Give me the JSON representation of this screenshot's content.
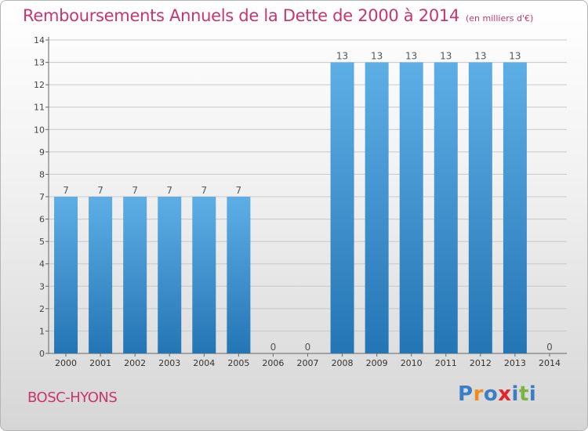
{
  "title": "Remboursements Annuels de la Dette de 2000 à 2014",
  "unit": "(en milliers d'€)",
  "commune": "BOSC-HYONS",
  "logo": {
    "text": "Proxiti",
    "colors": [
      "#3a7fc4",
      "#f08a1c",
      "#3a7fc4",
      "#e3242b",
      "#3a7fc4",
      "#7cb342",
      "#3a7fc4"
    ]
  },
  "colors": {
    "bar_top": "#5eaee6",
    "bar_bottom": "#2475b4",
    "title": "#c9356e"
  },
  "chart_data": {
    "type": "bar",
    "title": "Remboursements Annuels de la Dette de 2000 à 2014",
    "categories": [
      "2000",
      "2001",
      "2002",
      "2003",
      "2004",
      "2005",
      "2006",
      "2007",
      "2008",
      "2009",
      "2010",
      "2011",
      "2012",
      "2013",
      "2014"
    ],
    "values": [
      7,
      7,
      7,
      7,
      7,
      7,
      0,
      0,
      13,
      13,
      13,
      13,
      13,
      13,
      0
    ],
    "data_labels": [
      "7",
      "7",
      "7",
      "7",
      "7",
      "7",
      "0",
      "0",
      "13",
      "13",
      "13",
      "13",
      "13",
      "13",
      "0"
    ],
    "ylim": [
      0,
      14
    ],
    "yticks": [
      0,
      1,
      2,
      3,
      4,
      5,
      6,
      7,
      8,
      9,
      10,
      11,
      12,
      13,
      14
    ],
    "grid": true,
    "xlabel": "",
    "ylabel": ""
  }
}
